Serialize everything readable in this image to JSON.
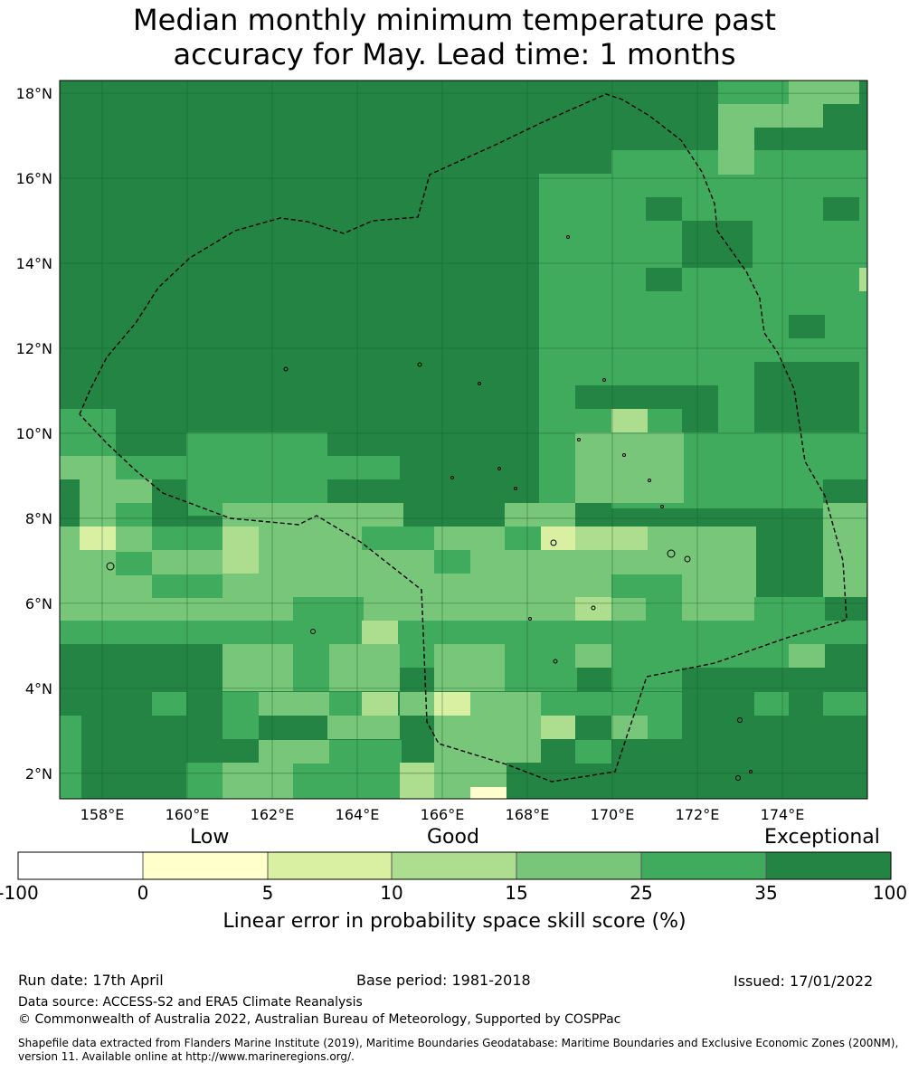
{
  "title": {
    "line1": "Median monthly minimum temperature past",
    "line2": "accuracy for May. Lead time: 1 months"
  },
  "map": {
    "lon_range": [
      157,
      176
    ],
    "lat_range": [
      1.4,
      18.3
    ],
    "x_ticks": [
      "158°E",
      "160°E",
      "162°E",
      "164°E",
      "166°E",
      "168°E",
      "170°E",
      "172°E",
      "174°E"
    ],
    "x_tick_values": [
      158,
      160,
      162,
      164,
      166,
      168,
      170,
      172,
      174
    ],
    "y_ticks": [
      "18°N",
      "16°N",
      "14°N",
      "12°N",
      "10°N",
      "8°N",
      "6°N",
      "4°N",
      "2°N"
    ],
    "y_tick_values": [
      18,
      16,
      14,
      12,
      10,
      8,
      6,
      4,
      2
    ],
    "grid": true,
    "boundary": "dashed black EEZ outline (Marshall Islands)"
  },
  "colorbar": {
    "categories": [
      "Low",
      "Good",
      "Exceptional"
    ],
    "ticks": [
      "-100",
      "0",
      "5",
      "10",
      "15",
      "25",
      "35",
      "100"
    ],
    "colors": [
      "#ffffff",
      "#ffffcc",
      "#d9f0a3",
      "#addd8e",
      "#78c679",
      "#41ab5d",
      "#238443"
    ],
    "label": "Linear error in probability space skill score (%)"
  },
  "footer": {
    "run_date": "Run date: 17th April",
    "base_period": "Base period: 1981-2018",
    "issued": "Issued: 17/01/2022",
    "data_source": "Data source: ACCESS-S2 and ERA5 Climate Reanalysis",
    "copyright": "© Commonwealth of Australia 2022, Australian Bureau of Meteorology, Supported by COSPPac",
    "shapefile": "Shapefile data extracted from Flanders Marine Institute (2019), Maritime Boundaries Geodatabase: Maritime Boundaries and Exclusive Economic Zones (200NM), version 11. Available online at http://www.marineregions.org/."
  }
}
